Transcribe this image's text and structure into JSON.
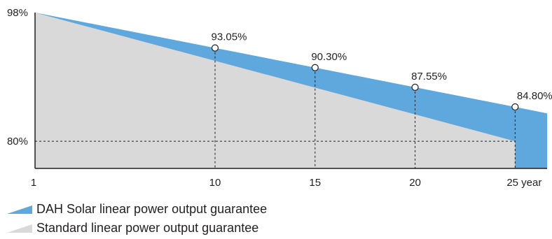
{
  "chart_data": {
    "type": "area",
    "title": "",
    "xlabel": "",
    "ylabel": "",
    "x_ticks": [
      {
        "x": 1,
        "label": "1"
      },
      {
        "x": 10,
        "label": "10"
      },
      {
        "x": 15,
        "label": "15"
      },
      {
        "x": 20,
        "label": "20"
      },
      {
        "x": 25,
        "label": "25 year"
      }
    ],
    "y_ticks": [
      {
        "y": 98,
        "label": "98%"
      },
      {
        "y": 80,
        "label": "80%"
      }
    ],
    "xlim": [
      1,
      26.6
    ],
    "ylim": [
      76.2,
      98
    ],
    "series": [
      {
        "name": "DAH Solar linear power output guarantee",
        "color": "#5fa8dd",
        "points": [
          [
            1,
            98
          ],
          [
            10,
            93.05
          ],
          [
            15,
            90.3
          ],
          [
            20,
            87.55
          ],
          [
            25,
            84.8
          ],
          [
            26.6,
            83.9
          ]
        ]
      },
      {
        "name": "Standard linear power output guarantee",
        "color": "#d9d9d9",
        "points": [
          [
            1,
            98
          ],
          [
            25,
            80
          ],
          [
            25,
            76.2
          ]
        ]
      }
    ],
    "annotations": [
      {
        "x": 10,
        "y": 93.05,
        "label": "93.05%"
      },
      {
        "x": 15,
        "y": 90.3,
        "label": "90.30%"
      },
      {
        "x": 20,
        "y": 87.55,
        "label": "87.55%"
      },
      {
        "x": 25,
        "y": 84.8,
        "label": "84.80%"
      }
    ],
    "reference_lines": [
      {
        "axis": "y",
        "value": 80,
        "to_x": 25
      }
    ],
    "grid": false,
    "legend_position": "bottom-left"
  },
  "legend": [
    {
      "label": "DAH Solar linear power output guarantee",
      "color": "#5fa8dd"
    },
    {
      "label": "Standard linear power output guarantee",
      "color": "#d9d9d9"
    }
  ]
}
